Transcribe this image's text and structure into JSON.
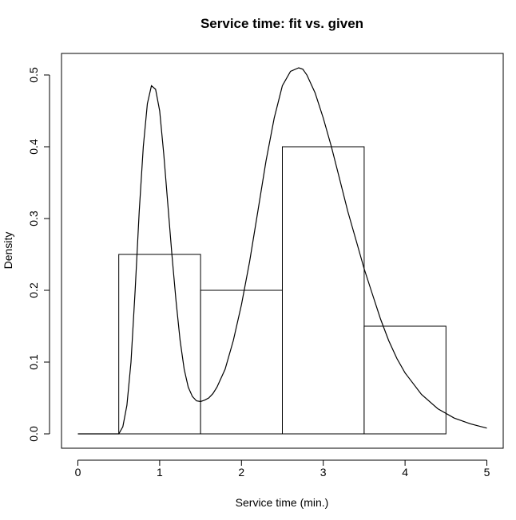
{
  "chart_data": {
    "type": "bar",
    "title": "Service time: fit vs. given",
    "xlabel": "Service time (min.)",
    "ylabel": "Density",
    "xlim": [
      -0.2,
      5.2
    ],
    "ylim": [
      -0.02,
      0.53
    ],
    "x_ticks": [
      "0",
      "1",
      "2",
      "3",
      "4",
      "5"
    ],
    "y_ticks": [
      "0.0",
      "0.1",
      "0.2",
      "0.3",
      "0.4",
      "0.5"
    ],
    "histogram_bins": [
      {
        "from": 0.5,
        "to": 1.5,
        "density": 0.25
      },
      {
        "from": 1.5,
        "to": 2.5,
        "density": 0.2
      },
      {
        "from": 2.5,
        "to": 3.5,
        "density": 0.4
      },
      {
        "from": 3.5,
        "to": 4.5,
        "density": 0.15
      }
    ],
    "fitted_curve": {
      "x": [
        0,
        0.5,
        0.55,
        0.6,
        0.65,
        0.7,
        0.75,
        0.8,
        0.85,
        0.9,
        0.95,
        1.0,
        1.05,
        1.1,
        1.15,
        1.2,
        1.25,
        1.3,
        1.35,
        1.4,
        1.45,
        1.5,
        1.55,
        1.6,
        1.65,
        1.7,
        1.8,
        1.9,
        2.0,
        2.1,
        2.2,
        2.3,
        2.4,
        2.5,
        2.6,
        2.7,
        2.75,
        2.8,
        2.9,
        3.0,
        3.1,
        3.2,
        3.3,
        3.4,
        3.5,
        3.6,
        3.7,
        3.8,
        3.9,
        4.0,
        4.2,
        4.4,
        4.6,
        4.8,
        5.0
      ],
      "y": [
        0.0,
        0.0,
        0.01,
        0.04,
        0.1,
        0.2,
        0.31,
        0.4,
        0.46,
        0.485,
        0.48,
        0.45,
        0.39,
        0.32,
        0.25,
        0.185,
        0.13,
        0.09,
        0.065,
        0.052,
        0.046,
        0.045,
        0.047,
        0.05,
        0.056,
        0.065,
        0.09,
        0.13,
        0.18,
        0.24,
        0.31,
        0.38,
        0.44,
        0.485,
        0.505,
        0.51,
        0.508,
        0.5,
        0.475,
        0.44,
        0.4,
        0.355,
        0.31,
        0.27,
        0.23,
        0.195,
        0.16,
        0.13,
        0.105,
        0.085,
        0.055,
        0.035,
        0.022,
        0.014,
        0.008
      ]
    }
  }
}
